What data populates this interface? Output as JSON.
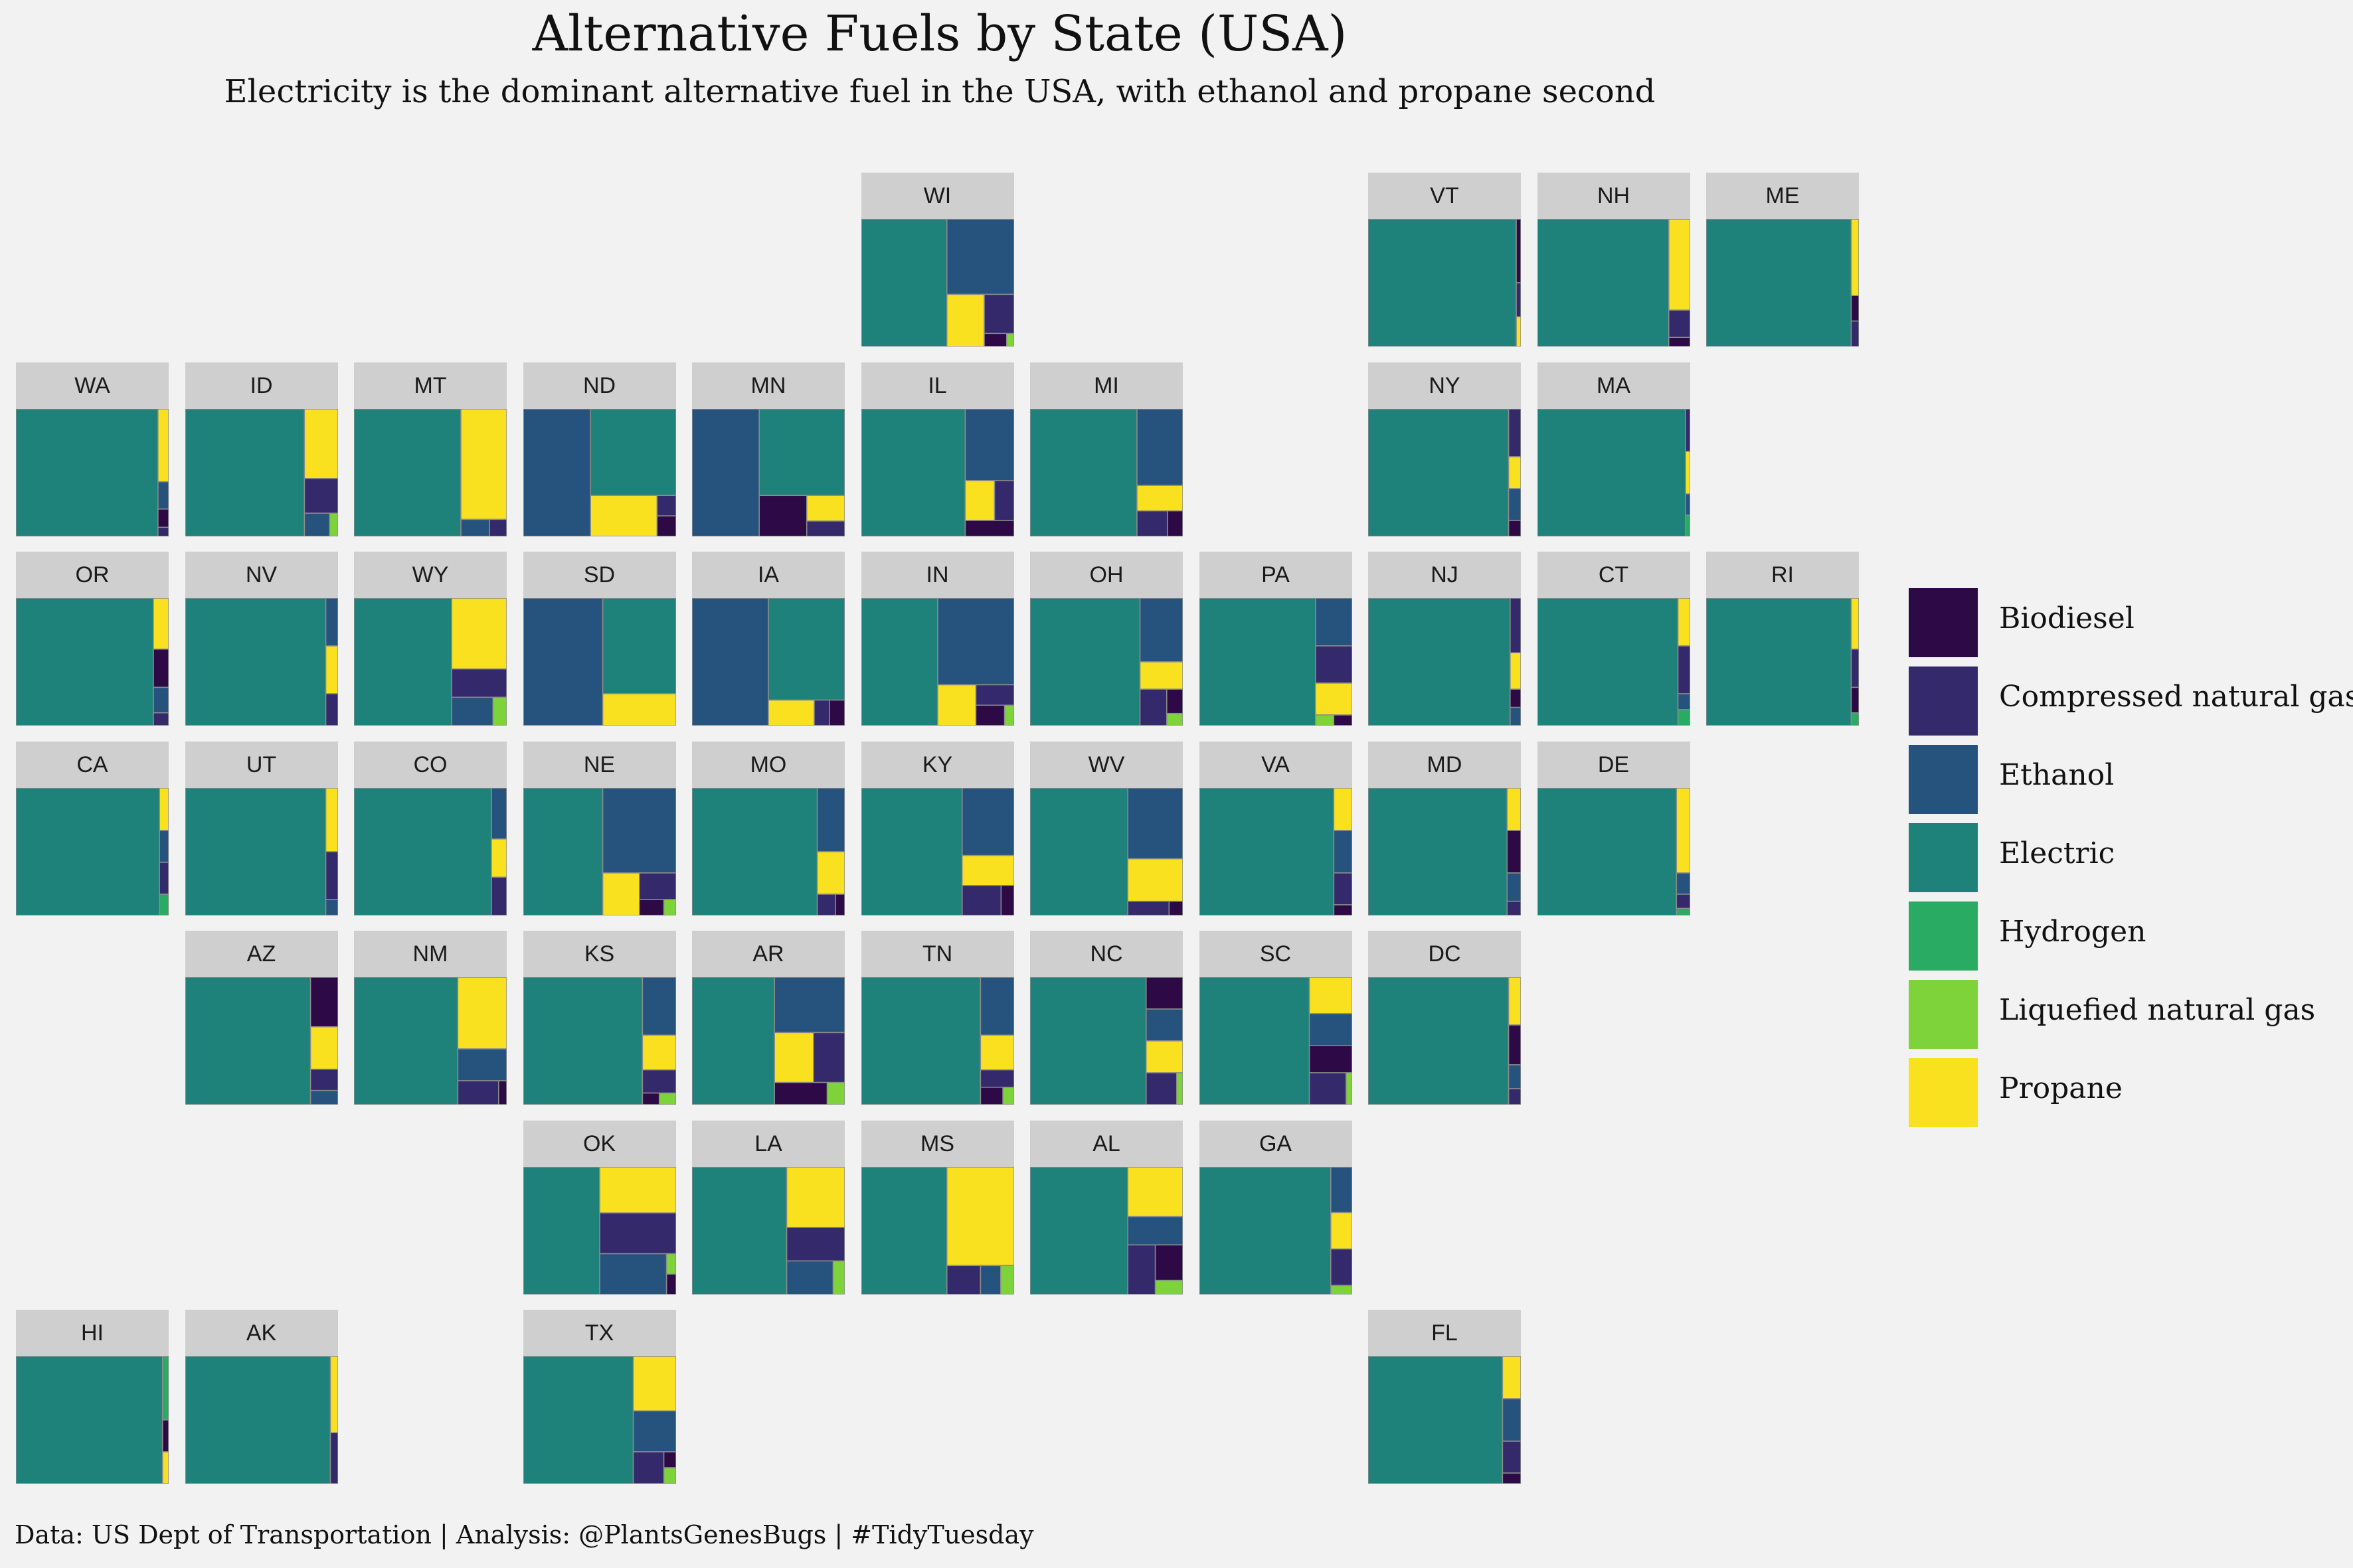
{
  "title": "Alternative Fuels by State (USA)",
  "subtitle": "Electricity is the dominant alternative fuel in the USA, with ethanol and propane second",
  "caption": "Data: US Dept of Transportation | Analysis: @PlantsGenesBugs | #TidyTuesday",
  "chart_data": {
    "type": "treemap-facet-grid",
    "fuels": [
      "Biodiesel",
      "Compressed natural gas",
      "Ethanol",
      "Electric",
      "Hydrogen",
      "Liquefied natural gas",
      "Propane"
    ],
    "colors": {
      "Biodiesel": "#2d0a45",
      "Compressed natural gas": "#33296b",
      "Ethanol": "#26537d",
      "Electric": "#1f827a",
      "Hydrogen": "#2aab63",
      "Liquefied natural gas": "#7ed33a",
      "Propane": "#f9e11f"
    },
    "states": [
      {
        "code": "WI",
        "row": 0,
        "col": 5,
        "shares": {
          "Electric": 56,
          "Ethanol": 26,
          "Propane": 10,
          "Compressed natural gas": 6,
          "Biodiesel": 1.5,
          "Liquefied natural gas": 0.5
        }
      },
      {
        "code": "VT",
        "row": 0,
        "col": 8,
        "shares": {
          "Electric": 97,
          "Biodiesel": 1.5,
          "Compressed natural gas": 0.8,
          "Propane": 0.7
        }
      },
      {
        "code": "NH",
        "row": 0,
        "col": 9,
        "shares": {
          "Electric": 86,
          "Propane": 10,
          "Compressed natural gas": 3,
          "Biodiesel": 1
        }
      },
      {
        "code": "ME",
        "row": 0,
        "col": 10,
        "shares": {
          "Electric": 95,
          "Propane": 3,
          "Biodiesel": 1,
          "Compressed natural gas": 1
        }
      },
      {
        "code": "WA",
        "row": 1,
        "col": 0,
        "shares": {
          "Electric": 93,
          "Propane": 4,
          "Ethanol": 1.5,
          "Biodiesel": 1,
          "Compressed natural gas": 0.5
        }
      },
      {
        "code": "ID",
        "row": 1,
        "col": 1,
        "shares": {
          "Electric": 78,
          "Propane": 12,
          "Compressed natural gas": 6,
          "Ethanol": 3,
          "Liquefied natural gas": 1
        }
      },
      {
        "code": "MT",
        "row": 1,
        "col": 2,
        "shares": {
          "Electric": 70,
          "Propane": 26,
          "Ethanol": 2.5,
          "Compressed natural gas": 1.5
        }
      },
      {
        "code": "ND",
        "row": 1,
        "col": 3,
        "shares": {
          "Ethanol": 44,
          "Electric": 38,
          "Propane": 14,
          "Compressed natural gas": 2,
          "Biodiesel": 2
        }
      },
      {
        "code": "MN",
        "row": 1,
        "col": 4,
        "shares": {
          "Ethanol": 44,
          "Electric": 38,
          "Biodiesel": 10,
          "Propane": 5,
          "Compressed natural gas": 3
        }
      },
      {
        "code": "IL",
        "row": 1,
        "col": 5,
        "shares": {
          "Electric": 68,
          "Ethanol": 18,
          "Propane": 6,
          "Compressed natural gas": 4,
          "Biodiesel": 4
        }
      },
      {
        "code": "MI",
        "row": 1,
        "col": 6,
        "shares": {
          "Electric": 70,
          "Ethanol": 18,
          "Propane": 6,
          "Compressed natural gas": 4,
          "Biodiesel": 2
        }
      },
      {
        "code": "NY",
        "row": 1,
        "col": 8,
        "shares": {
          "Electric": 92,
          "Compressed natural gas": 3,
          "Propane": 2,
          "Ethanol": 2,
          "Biodiesel": 1
        }
      },
      {
        "code": "MA",
        "row": 1,
        "col": 9,
        "shares": {
          "Electric": 97,
          "Compressed natural gas": 1,
          "Propane": 1,
          "Ethanol": 0.5,
          "Hydrogen": 0.5
        }
      },
      {
        "code": "OR",
        "row": 2,
        "col": 0,
        "shares": {
          "Electric": 90,
          "Propane": 4,
          "Biodiesel": 3,
          "Ethanol": 2,
          "Compressed natural gas": 1
        }
      },
      {
        "code": "NV",
        "row": 2,
        "col": 1,
        "shares": {
          "Electric": 92,
          "Ethanol": 3,
          "Propane": 3,
          "Compressed natural gas": 2
        }
      },
      {
        "code": "WY",
        "row": 2,
        "col": 2,
        "shares": {
          "Electric": 64,
          "Propane": 20,
          "Compressed natural gas": 8,
          "Ethanol": 6,
          "Liquefied natural gas": 2
        }
      },
      {
        "code": "SD",
        "row": 2,
        "col": 3,
        "shares": {
          "Ethanol": 52,
          "Electric": 36,
          "Propane": 12
        }
      },
      {
        "code": "IA",
        "row": 2,
        "col": 4,
        "shares": {
          "Ethanol": 50,
          "Electric": 40,
          "Propane": 6,
          "Compressed natural gas": 2,
          "Biodiesel": 2
        }
      },
      {
        "code": "IN",
        "row": 2,
        "col": 5,
        "shares": {
          "Electric": 50,
          "Ethanol": 34,
          "Propane": 8,
          "Compressed natural gas": 4,
          "Biodiesel": 3,
          "Liquefied natural gas": 1
        }
      },
      {
        "code": "OH",
        "row": 2,
        "col": 6,
        "shares": {
          "Electric": 72,
          "Ethanol": 14,
          "Propane": 6,
          "Compressed natural gas": 5,
          "Biodiesel": 2,
          "Liquefied natural gas": 1
        }
      },
      {
        "code": "PA",
        "row": 2,
        "col": 7,
        "shares": {
          "Electric": 76,
          "Ethanol": 9,
          "Compressed natural gas": 7,
          "Propane": 6,
          "Liquefied natural gas": 1,
          "Biodiesel": 1
        }
      },
      {
        "code": "NJ",
        "row": 2,
        "col": 8,
        "shares": {
          "Electric": 93,
          "Compressed natural gas": 3,
          "Propane": 2,
          "Biodiesel": 1,
          "Ethanol": 1
        }
      },
      {
        "code": "CT",
        "row": 2,
        "col": 9,
        "shares": {
          "Electric": 92,
          "Propane": 3,
          "Compressed natural gas": 3,
          "Ethanol": 1,
          "Hydrogen": 1
        }
      },
      {
        "code": "RI",
        "row": 2,
        "col": 10,
        "shares": {
          "Electric": 95,
          "Propane": 2,
          "Compressed natural gas": 1.5,
          "Biodiesel": 1,
          "Hydrogen": 0.5
        }
      },
      {
        "code": "CA",
        "row": 3,
        "col": 0,
        "shares": {
          "Electric": 94,
          "Propane": 2,
          "Ethanol": 1.5,
          "Compressed natural gas": 1.5,
          "Hydrogen": 1
        }
      },
      {
        "code": "UT",
        "row": 3,
        "col": 1,
        "shares": {
          "Electric": 92,
          "Propane": 4,
          "Compressed natural gas": 3,
          "Ethanol": 1
        }
      },
      {
        "code": "CO",
        "row": 3,
        "col": 2,
        "shares": {
          "Electric": 90,
          "Ethanol": 4,
          "Propane": 3,
          "Compressed natural gas": 3
        }
      },
      {
        "code": "NE",
        "row": 3,
        "col": 3,
        "shares": {
          "Electric": 52,
          "Ethanol": 32,
          "Propane": 8,
          "Compressed natural gas": 5,
          "Biodiesel": 2,
          "Liquefied natural gas": 1
        }
      },
      {
        "code": "MO",
        "row": 3,
        "col": 4,
        "shares": {
          "Electric": 82,
          "Ethanol": 9,
          "Propane": 6,
          "Compressed natural gas": 2,
          "Biodiesel": 1
        }
      },
      {
        "code": "KY",
        "row": 3,
        "col": 5,
        "shares": {
          "Electric": 66,
          "Ethanol": 18,
          "Propane": 8,
          "Compressed natural gas": 6,
          "Biodiesel": 2
        }
      },
      {
        "code": "WV",
        "row": 3,
        "col": 6,
        "shares": {
          "Electric": 64,
          "Ethanol": 20,
          "Propane": 12,
          "Compressed natural gas": 3,
          "Biodiesel": 1
        }
      },
      {
        "code": "VA",
        "row": 3,
        "col": 7,
        "shares": {
          "Electric": 88,
          "Propane": 4,
          "Ethanol": 4,
          "Compressed natural gas": 3,
          "Biodiesel": 1
        }
      },
      {
        "code": "MD",
        "row": 3,
        "col": 8,
        "shares": {
          "Electric": 91,
          "Propane": 3,
          "Biodiesel": 3,
          "Ethanol": 2,
          "Compressed natural gas": 1
        }
      },
      {
        "code": "DE",
        "row": 3,
        "col": 9,
        "shares": {
          "Electric": 91,
          "Propane": 6,
          "Ethanol": 1.5,
          "Compressed natural gas": 1,
          "Hydrogen": 0.5
        }
      },
      {
        "code": "AZ",
        "row": 4,
        "col": 1,
        "shares": {
          "Electric": 82,
          "Biodiesel": 7,
          "Propane": 6,
          "Compressed natural gas": 3,
          "Ethanol": 2
        }
      },
      {
        "code": "NM",
        "row": 4,
        "col": 2,
        "shares": {
          "Electric": 68,
          "Propane": 18,
          "Ethanol": 8,
          "Compressed natural gas": 5,
          "Biodiesel": 1
        }
      },
      {
        "code": "KS",
        "row": 4,
        "col": 3,
        "shares": {
          "Electric": 78,
          "Ethanol": 10,
          "Propane": 6,
          "Compressed natural gas": 4,
          "Biodiesel": 1,
          "Liquefied natural gas": 1
        }
      },
      {
        "code": "AR",
        "row": 4,
        "col": 4,
        "shares": {
          "Electric": 54,
          "Ethanol": 20,
          "Propane": 10,
          "Compressed natural gas": 8,
          "Biodiesel": 6,
          "Liquefied natural gas": 2
        }
      },
      {
        "code": "TN",
        "row": 4,
        "col": 5,
        "shares": {
          "Electric": 78,
          "Ethanol": 10,
          "Propane": 6,
          "Compressed natural gas": 3,
          "Biodiesel": 2,
          "Liquefied natural gas": 1
        }
      },
      {
        "code": "NC",
        "row": 4,
        "col": 6,
        "shares": {
          "Electric": 76,
          "Biodiesel": 6,
          "Ethanol": 6,
          "Propane": 6,
          "Compressed natural gas": 5,
          "Liquefied natural gas": 1
        }
      },
      {
        "code": "SC",
        "row": 4,
        "col": 7,
        "shares": {
          "Electric": 72,
          "Propane": 8,
          "Ethanol": 7,
          "Biodiesel": 6,
          "Compressed natural gas": 6,
          "Liquefied natural gas": 1
        }
      },
      {
        "code": "DC",
        "row": 4,
        "col": 8,
        "shares": {
          "Electric": 92,
          "Propane": 3,
          "Biodiesel": 2.5,
          "Ethanol": 1.5,
          "Compressed natural gas": 1
        }
      },
      {
        "code": "OK",
        "row": 5,
        "col": 3,
        "shares": {
          "Electric": 50,
          "Propane": 18,
          "Compressed natural gas": 16,
          "Ethanol": 14,
          "Liquefied natural gas": 1,
          "Biodiesel": 1
        }
      },
      {
        "code": "LA",
        "row": 5,
        "col": 4,
        "shares": {
          "Electric": 62,
          "Propane": 18,
          "Compressed natural gas": 10,
          "Ethanol": 8,
          "Liquefied natural gas": 2
        }
      },
      {
        "code": "MS",
        "row": 5,
        "col": 5,
        "shares": {
          "Electric": 56,
          "Propane": 34,
          "Compressed natural gas": 5,
          "Ethanol": 3,
          "Liquefied natural gas": 2
        }
      },
      {
        "code": "AL",
        "row": 5,
        "col": 6,
        "shares": {
          "Electric": 64,
          "Propane": 14,
          "Ethanol": 8,
          "Compressed natural gas": 7,
          "Biodiesel": 5,
          "Liquefied natural gas": 2
        }
      },
      {
        "code": "GA",
        "row": 5,
        "col": 7,
        "shares": {
          "Electric": 86,
          "Ethanol": 5,
          "Propane": 4,
          "Compressed natural gas": 4,
          "Liquefied natural gas": 1
        }
      },
      {
        "code": "HI",
        "row": 6,
        "col": 0,
        "shares": {
          "Electric": 96,
          "Hydrogen": 2,
          "Biodiesel": 1,
          "Propane": 1
        }
      },
      {
        "code": "AK",
        "row": 6,
        "col": 1,
        "shares": {
          "Electric": 95,
          "Propane": 3,
          "Compressed natural gas": 2
        }
      },
      {
        "code": "TX",
        "row": 6,
        "col": 3,
        "shares": {
          "Electric": 72,
          "Propane": 12,
          "Ethanol": 9,
          "Compressed natural gas": 5,
          "Biodiesel": 1,
          "Liquefied natural gas": 1
        }
      },
      {
        "code": "FL",
        "row": 6,
        "col": 8,
        "shares": {
          "Electric": 88,
          "Propane": 4,
          "Ethanol": 4,
          "Compressed natural gas": 3,
          "Biodiesel": 1
        }
      }
    ]
  }
}
